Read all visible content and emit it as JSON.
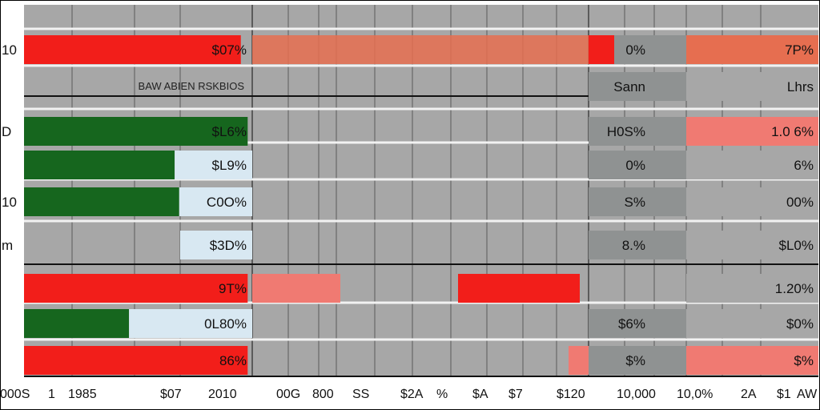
{
  "chart_data": {
    "type": "table",
    "title": "",
    "colors": {
      "red": "#f21e1a",
      "green": "#16661e",
      "light_blue": "#d8e8f2",
      "gray": "#a7a7a7",
      "dark_gray": "#8f9292",
      "orange": "#e66e50",
      "salmon": "#f07a72"
    },
    "row_edge_labels": [
      "10",
      "",
      "D",
      "",
      "10",
      "m",
      "",
      "",
      ""
    ],
    "rows": [
      {
        "left_value": "$07%",
        "left_fill": 0.95,
        "left_color": "red",
        "mid_text": "0%",
        "right_value": "7P%",
        "right_color": "orange"
      },
      {
        "left_value": "",
        "left_fill": 0,
        "left_color": "gray",
        "left_caption": "BAW ABIEN RSKBIOS",
        "mid_text": "Sann",
        "right_value": "Lhrs",
        "right_color": "gray"
      },
      {
        "left_value": "$L6%",
        "left_fill": 0.98,
        "left_color": "green",
        "mid_text": "H0S%",
        "right_value": "1.0 6%",
        "right_color": "salmon"
      },
      {
        "left_value": "$L9%",
        "left_fill": 0.66,
        "left_color": "green",
        "mid_text": "0%",
        "right_value": "6%",
        "right_color": "gray"
      },
      {
        "left_value": "C0O%",
        "left_fill": 0.68,
        "left_color": "green",
        "mid_text": "S%",
        "right_value": "00%",
        "right_color": "gray"
      },
      {
        "left_value": "$3D%",
        "left_fill": 0,
        "left_color": "light_blue",
        "mid_text": "8.%",
        "right_value": "$L0%",
        "right_color": "gray"
      },
      {
        "left_value": "9T%",
        "left_fill": 0.98,
        "left_color": "red",
        "mid_text": "",
        "right_value": "1.20%",
        "right_color": "gray"
      },
      {
        "left_value": "0L80%",
        "left_fill": 0.46,
        "left_color": "green",
        "mid_text": "$6%",
        "right_value": "$0%",
        "right_color": "gray"
      },
      {
        "left_value": "86%",
        "left_fill": 0.98,
        "left_color": "red",
        "mid_text": "$%",
        "right_value": "$%",
        "right_color": "salmon"
      }
    ],
    "bottom_tick_labels": [
      "000S",
      "1",
      "1985",
      "$07",
      "2010",
      "00G",
      "800",
      "SS",
      "$2A",
      "%",
      "$A",
      "$7",
      "$120",
      "10,000",
      "10,0%",
      "2A",
      "$1",
      "AW"
    ]
  }
}
